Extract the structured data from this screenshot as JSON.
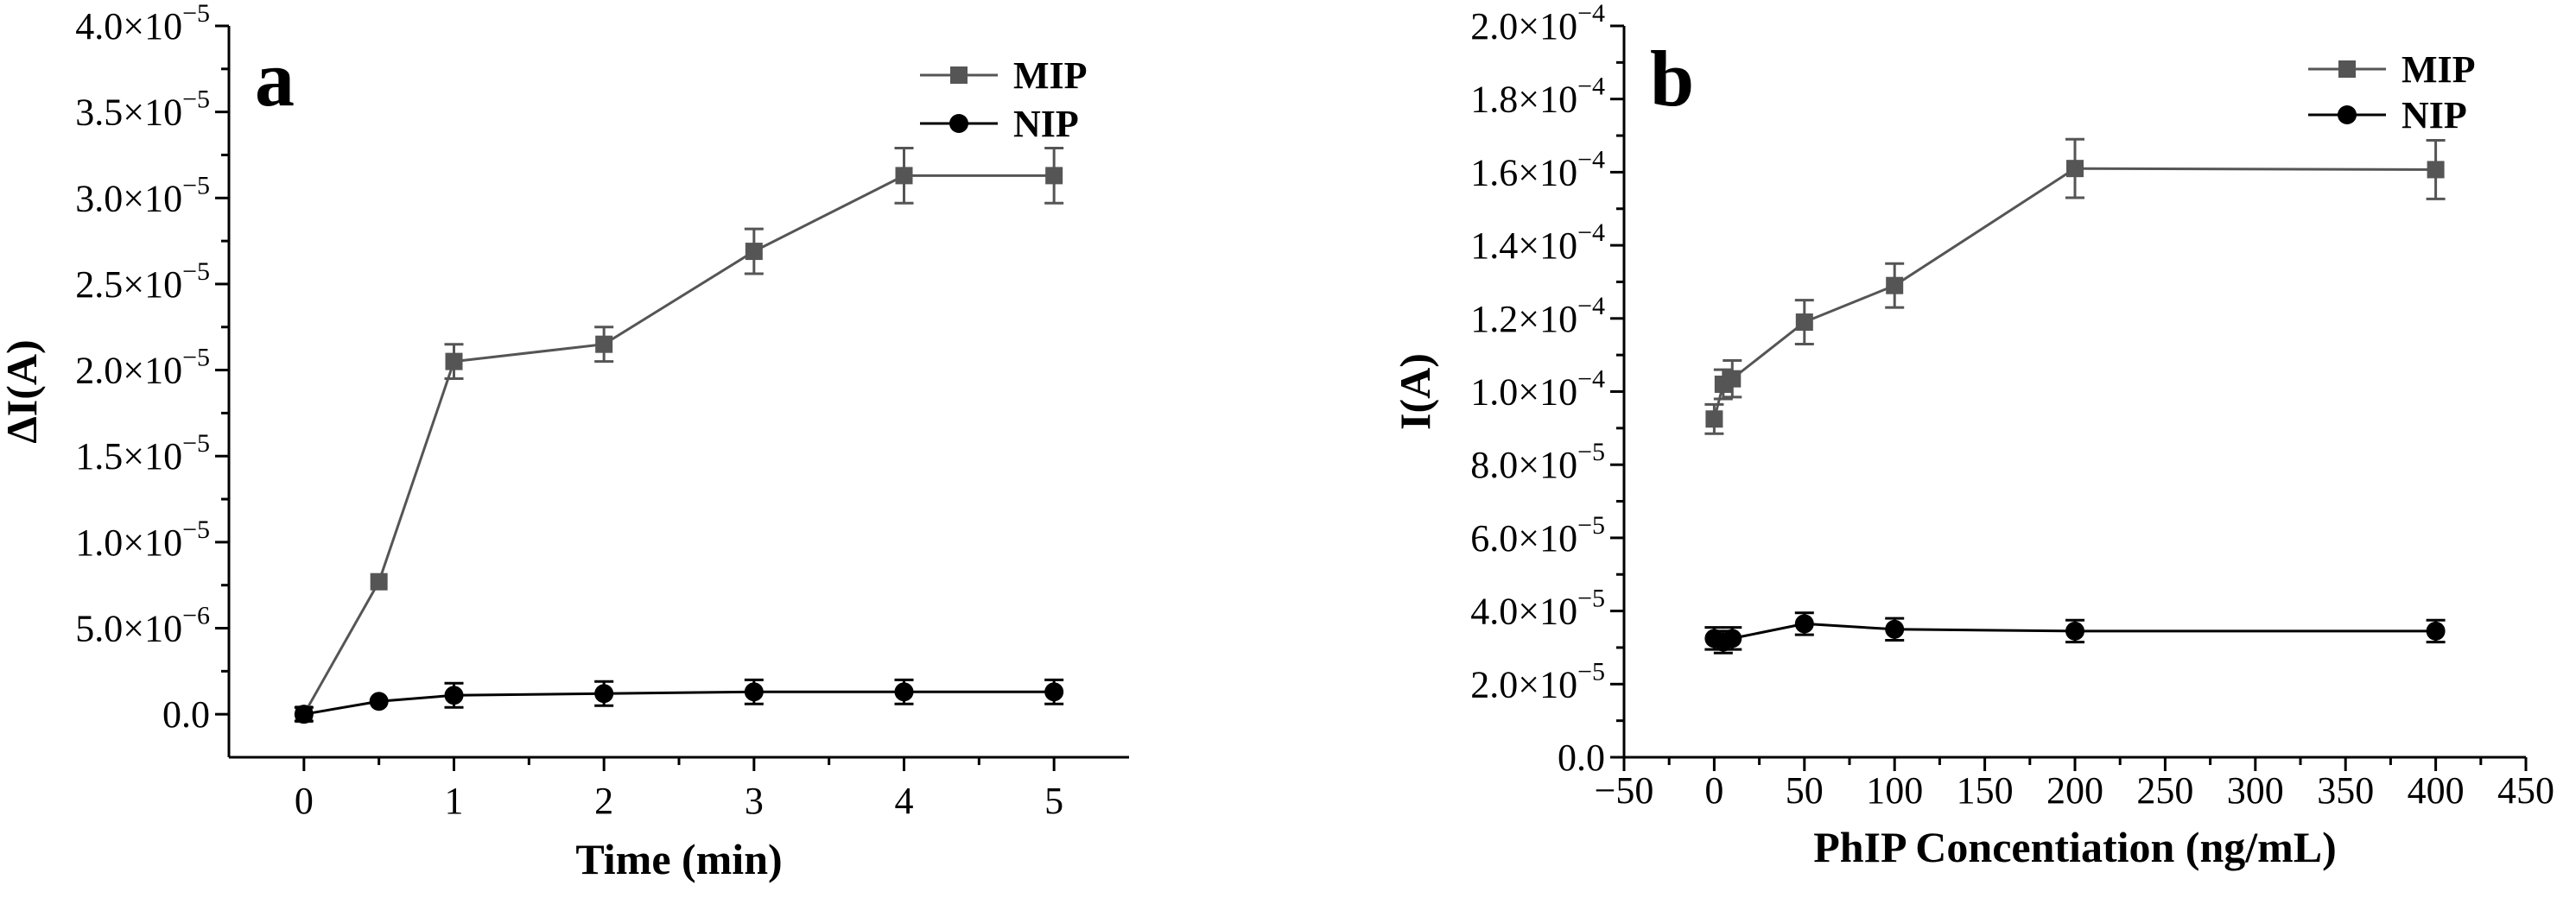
{
  "chart_data": [
    {
      "type": "line",
      "panel_label": "a",
      "xlabel": "Time (min)",
      "ylabel": "ΔI(A)",
      "xlim": [
        -0.5,
        5.5
      ],
      "ylim": [
        -2.5e-06,
        4e-05
      ],
      "x_ticks": [
        0,
        1,
        2,
        3,
        4,
        5
      ],
      "x_tick_labels": [
        "0",
        "1",
        "2",
        "3",
        "4",
        "5"
      ],
      "y_ticks": [
        0,
        5e-06,
        1e-05,
        1.5e-05,
        2e-05,
        2.5e-05,
        3e-05,
        3.5e-05,
        4e-05
      ],
      "y_tick_labels": [
        {
          "mantissa": "0.0",
          "exp": ""
        },
        {
          "mantissa": "5.0×10",
          "exp": "−6"
        },
        {
          "mantissa": "1.0×10",
          "exp": "−5"
        },
        {
          "mantissa": "1.5×10",
          "exp": "−5"
        },
        {
          "mantissa": "2.0×10",
          "exp": "−5"
        },
        {
          "mantissa": "2.5×10",
          "exp": "−5"
        },
        {
          "mantissa": "3.0×10",
          "exp": "−5"
        },
        {
          "mantissa": "3.5×10",
          "exp": "−5"
        },
        {
          "mantissa": "4.0×10",
          "exp": "−5"
        }
      ],
      "legend_position": "top-right",
      "grid": false,
      "series": [
        {
          "name": "MIP",
          "marker": "square",
          "color": "#555555",
          "x": [
            0,
            0.5,
            1,
            2,
            3,
            4,
            5
          ],
          "y": [
            0,
            7.7e-06,
            2.05e-05,
            2.15e-05,
            2.69e-05,
            3.13e-05,
            3.13e-05
          ],
          "err": [
            0,
            0,
            1e-06,
            1e-06,
            1.3e-06,
            1.6e-06,
            1.6e-06
          ]
        },
        {
          "name": "NIP",
          "marker": "circle",
          "color": "#000000",
          "x": [
            0,
            0.5,
            1,
            2,
            3,
            4,
            5
          ],
          "y": [
            0,
            7.5e-07,
            1.1e-06,
            1.2e-06,
            1.3e-06,
            1.3e-06,
            1.3e-06
          ],
          "err": [
            4e-07,
            0,
            7e-07,
            7e-07,
            7e-07,
            7e-07,
            7e-07
          ]
        }
      ]
    },
    {
      "type": "line",
      "panel_label": "b",
      "xlabel": "PhIP Concentiation (ng/mL)",
      "ylabel": "I(A)",
      "xlim": [
        -50,
        450
      ],
      "ylim": [
        0,
        0.0002
      ],
      "x_ticks": [
        -50,
        0,
        50,
        100,
        150,
        200,
        250,
        300,
        350,
        400,
        450
      ],
      "x_tick_labels": [
        "−50",
        "0",
        "50",
        "100",
        "150",
        "200",
        "250",
        "300",
        "350",
        "400",
        "450"
      ],
      "y_ticks": [
        0,
        2e-05,
        4e-05,
        6e-05,
        8e-05,
        0.0001,
        0.00012,
        0.00014,
        0.00016,
        0.00018,
        0.0002
      ],
      "y_tick_labels": [
        {
          "mantissa": "0.0",
          "exp": ""
        },
        {
          "mantissa": "2.0×10",
          "exp": "−5"
        },
        {
          "mantissa": "4.0×10",
          "exp": "−5"
        },
        {
          "mantissa": "6.0×10",
          "exp": "−5"
        },
        {
          "mantissa": "8.0×10",
          "exp": "−5"
        },
        {
          "mantissa": "1.0×10",
          "exp": "−4"
        },
        {
          "mantissa": "1.2×10",
          "exp": "−4"
        },
        {
          "mantissa": "1.4×10",
          "exp": "−4"
        },
        {
          "mantissa": "1.6×10",
          "exp": "−4"
        },
        {
          "mantissa": "1.8×10",
          "exp": "−4"
        },
        {
          "mantissa": "2.0×10",
          "exp": "−4"
        }
      ],
      "legend_position": "top-right",
      "grid": false,
      "series": [
        {
          "name": "MIP",
          "marker": "square",
          "color": "#555555",
          "x": [
            0,
            5,
            10,
            50,
            100,
            200,
            400
          ],
          "y": [
            9.25e-05,
            0.000102,
            0.0001035,
            0.000119,
            0.000129,
            0.000161,
            0.0001607
          ],
          "err": [
            4e-06,
            4e-06,
            5e-06,
            6e-06,
            6e-06,
            8e-06,
            8e-06
          ]
        },
        {
          "name": "NIP",
          "marker": "circle",
          "color": "#000000",
          "x": [
            0,
            5,
            10,
            50,
            100,
            200,
            400
          ],
          "y": [
            3.25e-05,
            3.15e-05,
            3.25e-05,
            3.65e-05,
            3.5e-05,
            3.45e-05,
            3.45e-05
          ],
          "err": [
            3e-06,
            3e-06,
            3e-06,
            3e-06,
            3e-06,
            3e-06,
            3e-06
          ]
        }
      ]
    }
  ]
}
